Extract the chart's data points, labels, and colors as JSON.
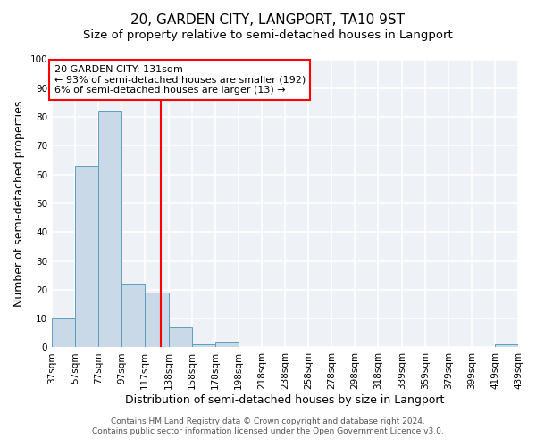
{
  "title": "20, GARDEN CITY, LANGPORT, TA10 9ST",
  "subtitle": "Size of property relative to semi-detached houses in Langport",
  "xlabel": "Distribution of semi-detached houses by size in Langport",
  "ylabel": "Number of semi-detached properties",
  "bin_edges": [
    37,
    57,
    77,
    97,
    117,
    138,
    158,
    178,
    198,
    218,
    238,
    258,
    278,
    298,
    318,
    339,
    359,
    379,
    399,
    419,
    439
  ],
  "bar_heights": [
    10,
    63,
    82,
    22,
    19,
    7,
    1,
    2,
    0,
    0,
    0,
    0,
    0,
    0,
    0,
    0,
    0,
    0,
    0,
    1
  ],
  "bar_color": "#c9d9e8",
  "bar_edge_color": "#5a9fc0",
  "vline_x": 131,
  "vline_color": "red",
  "annotation_title": "20 GARDEN CITY: 131sqm",
  "annotation_line1": "← 93% of semi-detached houses are smaller (192)",
  "annotation_line2": "6% of semi-detached houses are larger (13) →",
  "ylim": [
    0,
    100
  ],
  "xlim": [
    37,
    439
  ],
  "tick_labels": [
    "37sqm",
    "57sqm",
    "77sqm",
    "97sqm",
    "117sqm",
    "138sqm",
    "158sqm",
    "178sqm",
    "198sqm",
    "218sqm",
    "238sqm",
    "258sqm",
    "278sqm",
    "298sqm",
    "318sqm",
    "339sqm",
    "359sqm",
    "379sqm",
    "399sqm",
    "419sqm",
    "439sqm"
  ],
  "footnote1": "Contains HM Land Registry data © Crown copyright and database right 2024.",
  "footnote2": "Contains public sector information licensed under the Open Government Licence v3.0.",
  "bg_color": "#eef2f7",
  "grid_color": "white",
  "title_fontsize": 11,
  "subtitle_fontsize": 9.5,
  "axis_label_fontsize": 9,
  "tick_fontsize": 7.5,
  "annot_fontsize": 8,
  "footnote_fontsize": 6.5
}
